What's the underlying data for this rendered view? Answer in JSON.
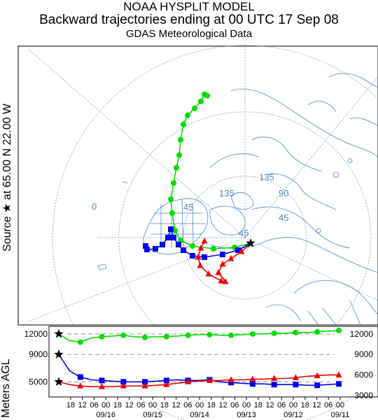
{
  "chart_data": {
    "type": "line",
    "title_lines": [
      "NOAA HYSPLIT MODEL",
      "Backward trajectories ending at 00 UTC 17 Sep 08",
      "GDAS Meteorological Data"
    ],
    "source_label": "Source ★ at   65.00 N   22.00 W",
    "ylabel": "Meters AGL",
    "map": {
      "grid_labels": [
        "0",
        "135",
        "135",
        "90",
        "45",
        "45",
        "45"
      ]
    },
    "height_panel": {
      "x_tick_labels": [
        "18",
        "12",
        "06",
        "00",
        "18",
        "12",
        "06",
        "00",
        "18",
        "12",
        "06",
        "00",
        "18",
        "12",
        "06",
        "00",
        "18",
        "12",
        "06",
        "00",
        "18",
        "12",
        "06",
        "00"
      ],
      "x_date_labels": [
        "09/16",
        "09/15",
        "09/14",
        "09/13",
        "09/12",
        "09/11"
      ],
      "y_left_labels": [
        "12000",
        "9000",
        "5000"
      ],
      "y_right_labels": [
        "12000",
        "9000",
        "6000",
        "3000"
      ],
      "series": [
        {
          "color": "#00dd00",
          "marker": "circle",
          "values": [
            12000,
            11000,
            10800,
            11400,
            11600,
            11700,
            11800,
            11600,
            11500,
            11600,
            11600,
            11700,
            11800,
            11900,
            11900,
            11800,
            11800,
            11900,
            12000,
            12000,
            12100,
            12100,
            12200,
            12200,
            12300,
            12400,
            12500
          ]
        },
        {
          "color": "#0000ee",
          "marker": "square",
          "values": [
            9000,
            6600,
            5700,
            5300,
            5200,
            5100,
            5000,
            5000,
            5000,
            5100,
            5200,
            5300,
            5200,
            5200,
            5300,
            5000,
            4900,
            4800,
            4700,
            4700,
            4600,
            4600,
            4600,
            4500,
            4500,
            4600,
            4700
          ]
        },
        {
          "color": "#ee0000",
          "marker": "triangle",
          "values": [
            5000,
            4600,
            4400,
            4300,
            4300,
            4300,
            4400,
            4400,
            4400,
            4500,
            4600,
            4800,
            5000,
            5100,
            5200,
            5200,
            5300,
            5300,
            5400,
            5400,
            5500,
            5500,
            5600,
            5800,
            5900,
            6000,
            6000
          ]
        }
      ]
    }
  }
}
